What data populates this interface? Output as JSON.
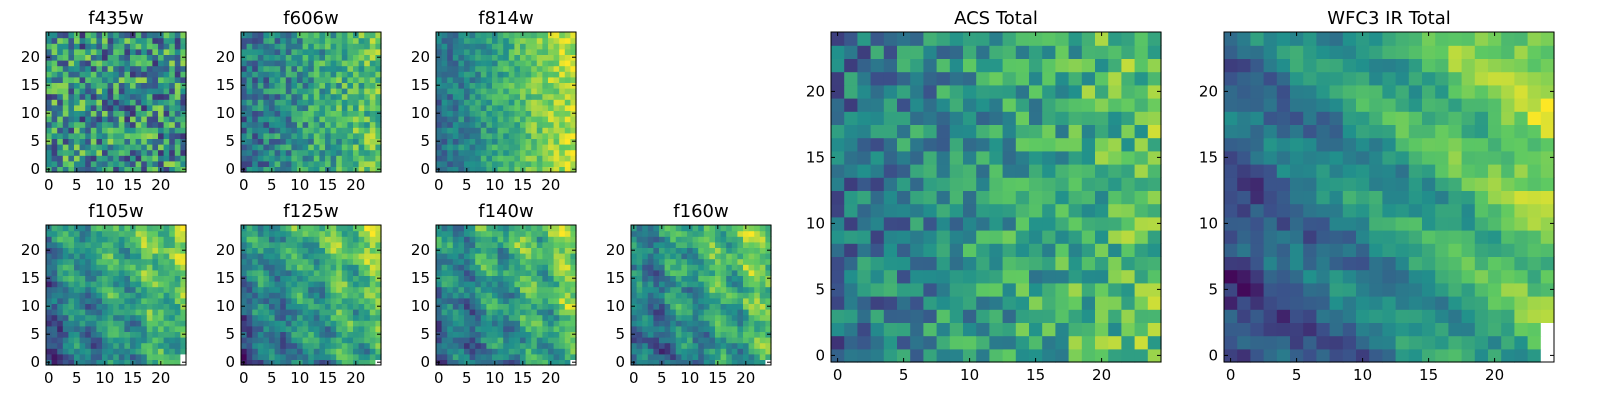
{
  "chart_data": [
    {
      "type": "heatmap",
      "title": "f435w",
      "xticks": [
        0,
        5,
        10,
        15,
        20
      ],
      "yticks": [
        0,
        5,
        10,
        15,
        20
      ],
      "xlim": [
        -0.5,
        24.5
      ],
      "ylim": [
        -0.5,
        24.5
      ],
      "grid_size": 25,
      "colormap": "viridis",
      "pattern": "noise",
      "missing_pixels": []
    },
    {
      "type": "heatmap",
      "title": "f606w",
      "xticks": [
        0,
        5,
        10,
        15,
        20
      ],
      "yticks": [
        0,
        5,
        10,
        15,
        20
      ],
      "xlim": [
        -0.5,
        24.5
      ],
      "ylim": [
        -0.5,
        24.5
      ],
      "grid_size": 25,
      "colormap": "viridis",
      "pattern": "noise-gradient-right",
      "missing_pixels": []
    },
    {
      "type": "heatmap",
      "title": "f814w",
      "xticks": [
        0,
        5,
        10,
        15,
        20
      ],
      "yticks": [
        0,
        5,
        10,
        15,
        20
      ],
      "xlim": [
        -0.5,
        24.5
      ],
      "ylim": [
        -0.5,
        24.5
      ],
      "grid_size": 25,
      "colormap": "viridis",
      "pattern": "gradient-right",
      "missing_pixels": []
    },
    {
      "type": "heatmap",
      "title": "f105w",
      "xticks": [
        0,
        5,
        10,
        15,
        20
      ],
      "yticks": [
        0,
        5,
        10,
        15,
        20
      ],
      "xlim": [
        -0.5,
        24.5
      ],
      "ylim": [
        -0.5,
        24.5
      ],
      "grid_size": 25,
      "colormap": "viridis",
      "pattern": "structured",
      "missing_pixels": [
        [
          24,
          0
        ],
        [
          24,
          1
        ]
      ]
    },
    {
      "type": "heatmap",
      "title": "f125w",
      "xticks": [
        0,
        5,
        10,
        15,
        20
      ],
      "yticks": [
        0,
        5,
        10,
        15,
        20
      ],
      "xlim": [
        -0.5,
        24.5
      ],
      "ylim": [
        -0.5,
        24.5
      ],
      "grid_size": 25,
      "colormap": "viridis",
      "pattern": "structured",
      "missing_pixels": [
        [
          24,
          0
        ]
      ]
    },
    {
      "type": "heatmap",
      "title": "f140w",
      "xticks": [
        0,
        5,
        10,
        15,
        20
      ],
      "yticks": [
        0,
        5,
        10,
        15,
        20
      ],
      "xlim": [
        -0.5,
        24.5
      ],
      "ylim": [
        -0.5,
        24.5
      ],
      "grid_size": 25,
      "colormap": "viridis",
      "pattern": "structured",
      "missing_pixels": [
        [
          24,
          0
        ]
      ]
    },
    {
      "type": "heatmap",
      "title": "f160w",
      "xticks": [
        0,
        5,
        10,
        15,
        20
      ],
      "yticks": [
        0,
        5,
        10,
        15,
        20
      ],
      "xlim": [
        -0.5,
        24.5
      ],
      "ylim": [
        -0.5,
        24.5
      ],
      "grid_size": 25,
      "colormap": "viridis",
      "pattern": "structured",
      "missing_pixels": [
        [
          24,
          0
        ]
      ]
    },
    {
      "type": "heatmap",
      "title": "ACS Total",
      "xticks": [
        0,
        5,
        10,
        15,
        20
      ],
      "yticks": [
        0,
        5,
        10,
        15,
        20
      ],
      "xlim": [
        -0.5,
        24.5
      ],
      "ylim": [
        -0.5,
        24.5
      ],
      "grid_size": 25,
      "colormap": "viridis",
      "pattern": "noise-gradient-right",
      "missing_pixels": []
    },
    {
      "type": "heatmap",
      "title": "WFC3 IR Total",
      "xticks": [
        0,
        5,
        10,
        15,
        20
      ],
      "yticks": [
        0,
        5,
        10,
        15,
        20
      ],
      "xlim": [
        -0.5,
        24.5
      ],
      "ylim": [
        -0.5,
        24.5
      ],
      "grid_size": 25,
      "colormap": "viridis",
      "pattern": "structured-gradient",
      "missing_pixels": [
        [
          24,
          0
        ],
        [
          24,
          1
        ],
        [
          24,
          2
        ]
      ]
    }
  ],
  "colors": {
    "viridis": [
      "#440154",
      "#3b528b",
      "#21918c",
      "#5ec962",
      "#fde725"
    ],
    "axes": "#000000",
    "missing": "#ffffff"
  }
}
